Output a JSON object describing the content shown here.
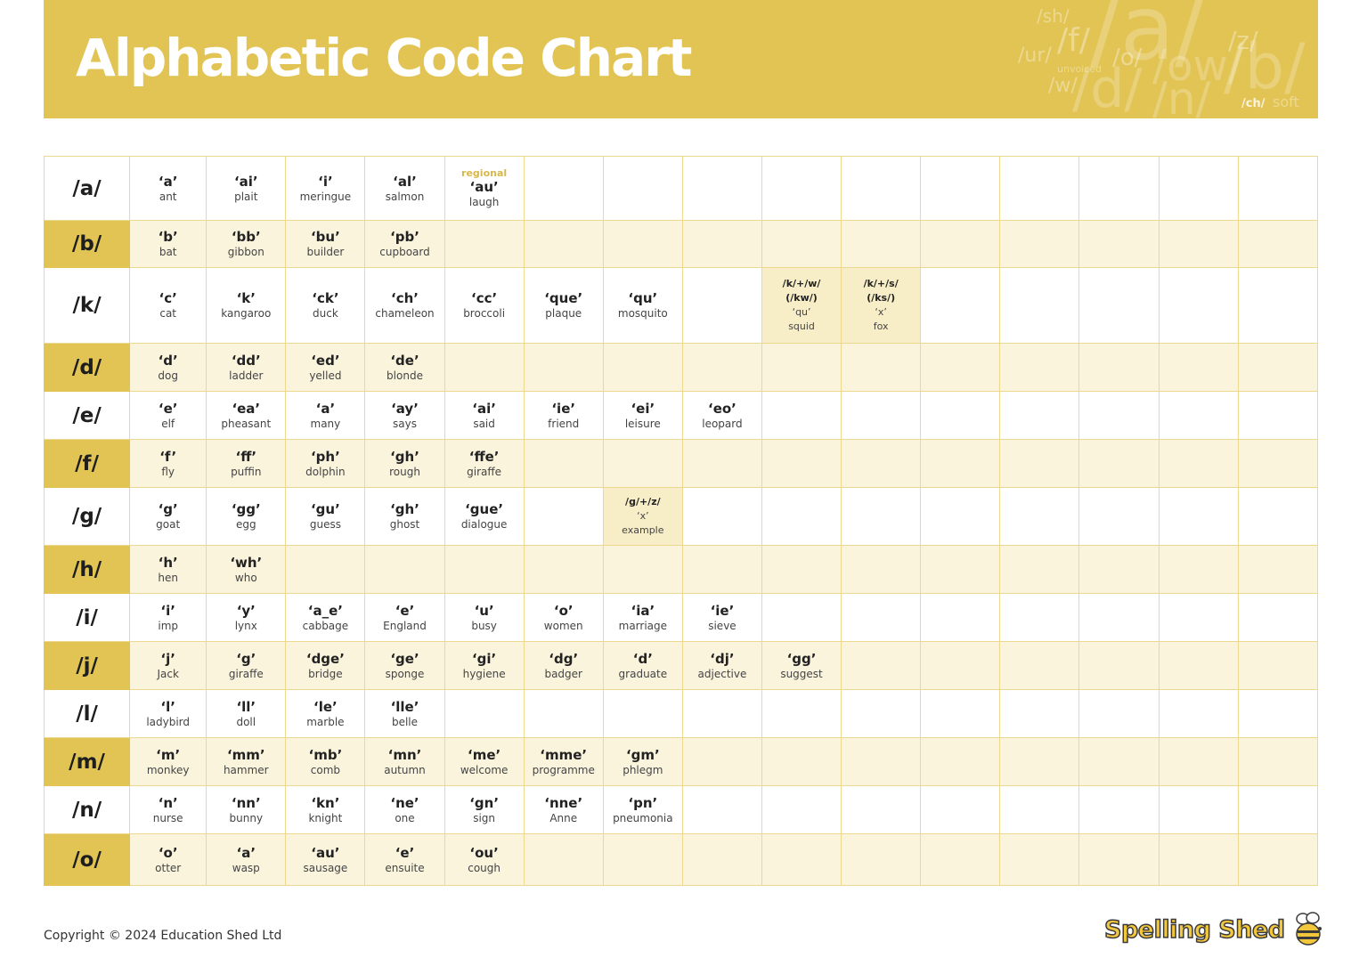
{
  "header": {
    "title": "Alphabetic Code Chart",
    "deco": [
      "/a/",
      "/b/",
      "/d/",
      "/o/",
      "/n/",
      "/sh/",
      "/f/",
      "/ur/",
      "/w/",
      "/z/",
      "/ch/",
      "soft",
      "unvoiced",
      "/ow/"
    ]
  },
  "chart": {
    "rows": [
      {
        "phoneme": "/a/",
        "cells": [
          {
            "g": "‘a’",
            "w": "ant"
          },
          {
            "g": "‘ai’",
            "w": "plait"
          },
          {
            "g": "‘i’",
            "w": "meringue"
          },
          {
            "g": "‘al’",
            "w": "salmon"
          },
          {
            "note": "regional",
            "g": "‘au’",
            "w": "laugh"
          }
        ]
      },
      {
        "phoneme": "/b/",
        "cells": [
          {
            "g": "‘b’",
            "w": "bat"
          },
          {
            "g": "‘bb’",
            "w": "gibbon"
          },
          {
            "g": "‘bu’",
            "w": "builder"
          },
          {
            "g": "‘pb’",
            "w": "cupboard"
          }
        ]
      },
      {
        "phoneme": "/k/",
        "cells": [
          {
            "g": "‘c’",
            "w": "cat"
          },
          {
            "g": "‘k’",
            "w": "kangaroo"
          },
          {
            "g": "‘ck’",
            "w": "duck"
          },
          {
            "g": "‘ch’",
            "w": "chameleon"
          },
          {
            "g": "‘cc’",
            "w": "broccoli"
          },
          {
            "g": "‘que’",
            "w": "plaque"
          },
          {
            "g": "‘qu’",
            "w": "mosquito"
          },
          {},
          {
            "special": true,
            "sound": "/k/+/w/",
            "alt": "(/kw/)",
            "g": "‘qu’",
            "w": "squid"
          },
          {
            "special": true,
            "sound": "/k/+/s/",
            "alt": "(/ks/)",
            "g": "‘x’",
            "w": "fox"
          }
        ]
      },
      {
        "phoneme": "/d/",
        "cells": [
          {
            "g": "‘d’",
            "w": "dog"
          },
          {
            "g": "‘dd’",
            "w": "ladder"
          },
          {
            "g": "‘ed’",
            "w": "yelled"
          },
          {
            "g": "‘de’",
            "w": "blonde"
          }
        ]
      },
      {
        "phoneme": "/e/",
        "cells": [
          {
            "g": "‘e’",
            "w": "elf"
          },
          {
            "g": "‘ea’",
            "w": "pheasant"
          },
          {
            "g": "‘a’",
            "w": "many"
          },
          {
            "g": "‘ay’",
            "w": "says"
          },
          {
            "g": "‘ai’",
            "w": "said"
          },
          {
            "g": "‘ie’",
            "w": "friend"
          },
          {
            "g": "‘ei’",
            "w": "leisure"
          },
          {
            "g": "‘eo’",
            "w": "leopard"
          }
        ]
      },
      {
        "phoneme": "/f/",
        "cells": [
          {
            "g": "‘f’",
            "w": "fly"
          },
          {
            "g": "‘ff’",
            "w": "puffin"
          },
          {
            "g": "‘ph’",
            "w": "dolphin"
          },
          {
            "g": "‘gh’",
            "w": "rough"
          },
          {
            "g": "‘ffe’",
            "w": "giraffe"
          }
        ]
      },
      {
        "phoneme": "/g/",
        "cells": [
          {
            "g": "‘g’",
            "w": "goat"
          },
          {
            "g": "‘gg’",
            "w": "egg"
          },
          {
            "g": "‘gu’",
            "w": "guess"
          },
          {
            "g": "‘gh’",
            "w": "ghost"
          },
          {
            "g": "‘gue’",
            "w": "dialogue"
          },
          {},
          {
            "special": true,
            "sound": "/g/+/z/",
            "g": "‘x’",
            "w": "example"
          }
        ]
      },
      {
        "phoneme": "/h/",
        "cells": [
          {
            "g": "‘h’",
            "w": "hen"
          },
          {
            "g": "‘wh’",
            "w": "who"
          }
        ]
      },
      {
        "phoneme": "/i/",
        "cells": [
          {
            "g": "‘i’",
            "w": "imp"
          },
          {
            "g": "‘y’",
            "w": "lynx"
          },
          {
            "g": "‘a_e’",
            "w": "cabbage"
          },
          {
            "g": "‘e’",
            "w": "England"
          },
          {
            "g": "‘u’",
            "w": "busy"
          },
          {
            "g": "‘o’",
            "w": "women"
          },
          {
            "g": "‘ia’",
            "w": "marriage"
          },
          {
            "g": "‘ie’",
            "w": "sieve"
          }
        ]
      },
      {
        "phoneme": "/j/",
        "cells": [
          {
            "g": "‘j’",
            "w": "Jack"
          },
          {
            "g": "‘g’",
            "w": "giraffe"
          },
          {
            "g": "‘dge’",
            "w": "bridge"
          },
          {
            "g": "‘ge’",
            "w": "sponge"
          },
          {
            "g": "‘gi’",
            "w": "hygiene"
          },
          {
            "g": "‘dg’",
            "w": "badger"
          },
          {
            "g": "‘d’",
            "w": "graduate"
          },
          {
            "g": "‘dj’",
            "w": "adjective"
          },
          {
            "g": "‘gg’",
            "w": "suggest"
          }
        ]
      },
      {
        "phoneme": "/l/",
        "cells": [
          {
            "g": "‘l’",
            "w": "ladybird"
          },
          {
            "g": "‘ll’",
            "w": "doll"
          },
          {
            "g": "‘le’",
            "w": "marble"
          },
          {
            "g": "‘lle’",
            "w": "belle"
          }
        ]
      },
      {
        "phoneme": "/m/",
        "cells": [
          {
            "g": "‘m’",
            "w": "monkey"
          },
          {
            "g": "‘mm’",
            "w": "hammer"
          },
          {
            "g": "‘mb’",
            "w": "comb"
          },
          {
            "g": "‘mn’",
            "w": "autumn"
          },
          {
            "g": "‘me’",
            "w": "welcome"
          },
          {
            "g": "‘mme’",
            "w": "programme"
          },
          {
            "g": "‘gm’",
            "w": "phlegm"
          }
        ]
      },
      {
        "phoneme": "/n/",
        "cells": [
          {
            "g": "‘n’",
            "w": "nurse"
          },
          {
            "g": "‘nn’",
            "w": "bunny"
          },
          {
            "g": "‘kn’",
            "w": "knight"
          },
          {
            "g": "‘ne’",
            "w": "one"
          },
          {
            "g": "‘gn’",
            "w": "sign"
          },
          {
            "g": "‘nne’",
            "w": "Anne"
          },
          {
            "g": "‘pn’",
            "w": "pneumonia"
          }
        ]
      },
      {
        "phoneme": "/o/",
        "cells": [
          {
            "g": "‘o’",
            "w": "otter"
          },
          {
            "g": "‘a’",
            "w": "wasp"
          },
          {
            "g": "‘au’",
            "w": "sausage"
          },
          {
            "g": "‘e’",
            "w": "ensuite"
          },
          {
            "g": "‘ou’",
            "w": "cough"
          }
        ]
      }
    ]
  },
  "footer": {
    "copyright": "Copyright © 2024 Education Shed Ltd",
    "logo": "Spelling Shed"
  },
  "colors": {
    "accent": "#e2c455",
    "row_alt": "#faf4dd",
    "special": "#f7edc6",
    "grid": "#ecd98f"
  },
  "icons": {
    "logo_mascot": "bee-icon"
  }
}
